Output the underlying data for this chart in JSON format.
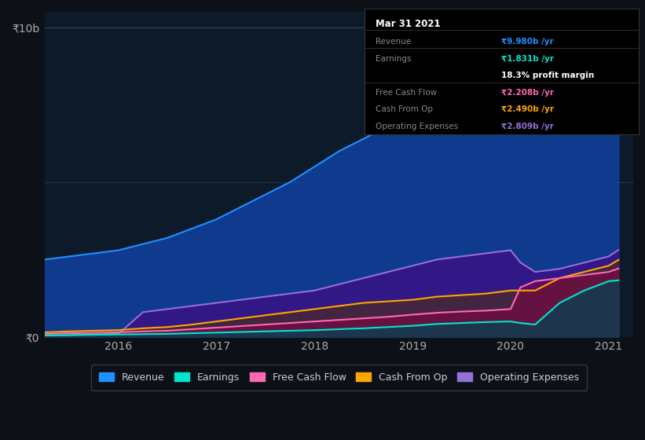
{
  "bg_color": "#0d1117",
  "chart_bg": "#0d1a2a",
  "title": "Mar 31 2021",
  "y_label_10b": "₹10b",
  "y_label_0": "₹0",
  "x_ticks": [
    "2016",
    "2017",
    "2018",
    "2019",
    "2020",
    "2021"
  ],
  "ylim": [
    0,
    10.5
  ],
  "tooltip": {
    "title": "Mar 31 2021",
    "rows": [
      {
        "label": "Revenue",
        "value": "₹9.980b /yr",
        "color": "#00bfff"
      },
      {
        "label": "Earnings",
        "value": "₹1.831b /yr",
        "color": "#00ffcc"
      },
      {
        "label": "profit_margin",
        "value": "18.3% profit margin",
        "color": "#ffffff"
      },
      {
        "label": "Free Cash Flow",
        "value": "₹2.208b /yr",
        "color": "#ff69b4"
      },
      {
        "label": "Cash From Op",
        "value": "₹2.490b /yr",
        "color": "#ffa500"
      },
      {
        "label": "Operating Expenses",
        "value": "₹2.809b /yr",
        "color": "#9370db"
      }
    ]
  },
  "revenue": {
    "x": [
      2015.25,
      2015.5,
      2015.75,
      2016.0,
      2016.25,
      2016.5,
      2016.75,
      2017.0,
      2017.25,
      2017.5,
      2017.75,
      2018.0,
      2018.25,
      2018.5,
      2018.75,
      2019.0,
      2019.25,
      2019.5,
      2019.75,
      2020.0,
      2020.1,
      2020.25,
      2020.5,
      2020.75,
      2021.0,
      2021.1
    ],
    "y": [
      2.5,
      2.6,
      2.7,
      2.8,
      3.0,
      3.2,
      3.5,
      3.8,
      4.2,
      4.6,
      5.0,
      5.5,
      6.0,
      6.4,
      6.8,
      7.2,
      7.6,
      7.9,
      8.1,
      8.3,
      7.8,
      7.3,
      7.8,
      8.5,
      9.5,
      10.0
    ],
    "color": "#1e90ff",
    "fill_color": "#1040a0",
    "alpha": 0.85
  },
  "earnings": {
    "x": [
      2015.25,
      2015.5,
      2015.75,
      2016.0,
      2016.25,
      2016.5,
      2016.75,
      2017.0,
      2017.25,
      2017.5,
      2017.75,
      2018.0,
      2018.25,
      2018.5,
      2018.75,
      2019.0,
      2019.25,
      2019.5,
      2019.75,
      2020.0,
      2020.1,
      2020.25,
      2020.5,
      2020.75,
      2021.0,
      2021.1
    ],
    "y": [
      0.05,
      0.06,
      0.07,
      0.08,
      0.09,
      0.1,
      0.12,
      0.14,
      0.16,
      0.18,
      0.2,
      0.22,
      0.25,
      0.28,
      0.32,
      0.36,
      0.42,
      0.45,
      0.48,
      0.5,
      0.45,
      0.4,
      1.1,
      1.5,
      1.8,
      1.83
    ],
    "color": "#00e5cc",
    "fill_color": "#004455",
    "alpha": 0.7
  },
  "free_cash_flow": {
    "x": [
      2015.25,
      2015.5,
      2015.75,
      2016.0,
      2016.25,
      2016.5,
      2016.75,
      2017.0,
      2017.25,
      2017.5,
      2017.75,
      2018.0,
      2018.25,
      2018.5,
      2018.75,
      2019.0,
      2019.25,
      2019.5,
      2019.75,
      2020.0,
      2020.1,
      2020.25,
      2020.5,
      2020.75,
      2021.0,
      2021.1
    ],
    "y": [
      0.1,
      0.12,
      0.13,
      0.15,
      0.18,
      0.2,
      0.25,
      0.3,
      0.35,
      0.4,
      0.45,
      0.5,
      0.55,
      0.6,
      0.65,
      0.72,
      0.78,
      0.82,
      0.85,
      0.9,
      1.6,
      1.8,
      1.9,
      2.0,
      2.1,
      2.208
    ],
    "color": "#ff69b4",
    "fill_color": "#880040",
    "alpha": 0.5
  },
  "cash_from_op": {
    "x": [
      2015.25,
      2015.5,
      2015.75,
      2016.0,
      2016.25,
      2016.5,
      2016.75,
      2017.0,
      2017.25,
      2017.5,
      2017.75,
      2018.0,
      2018.25,
      2018.5,
      2018.75,
      2019.0,
      2019.25,
      2019.5,
      2019.75,
      2020.0,
      2020.1,
      2020.25,
      2020.5,
      2020.75,
      2021.0,
      2021.1
    ],
    "y": [
      0.15,
      0.18,
      0.2,
      0.22,
      0.28,
      0.32,
      0.4,
      0.5,
      0.6,
      0.7,
      0.8,
      0.9,
      1.0,
      1.1,
      1.15,
      1.2,
      1.3,
      1.35,
      1.4,
      1.5,
      1.5,
      1.5,
      1.9,
      2.1,
      2.3,
      2.49
    ],
    "color": "#ffa500",
    "fill_color": "#553300",
    "alpha": 0.5
  },
  "operating_expenses": {
    "x": [
      2015.25,
      2015.5,
      2015.75,
      2016.0,
      2016.25,
      2016.5,
      2016.75,
      2017.0,
      2017.25,
      2017.5,
      2017.75,
      2018.0,
      2018.25,
      2018.5,
      2018.75,
      2019.0,
      2019.25,
      2019.5,
      2019.75,
      2020.0,
      2020.1,
      2020.25,
      2020.5,
      2020.75,
      2021.0,
      2021.1
    ],
    "y": [
      0.05,
      0.06,
      0.08,
      0.1,
      0.8,
      0.9,
      1.0,
      1.1,
      1.2,
      1.3,
      1.4,
      1.5,
      1.7,
      1.9,
      2.1,
      2.3,
      2.5,
      2.6,
      2.7,
      2.8,
      2.4,
      2.1,
      2.2,
      2.4,
      2.6,
      2.809
    ],
    "color": "#9370db",
    "fill_color": "#4b0082",
    "alpha": 0.6
  },
  "legend": [
    {
      "label": "Revenue",
      "color": "#1e90ff"
    },
    {
      "label": "Earnings",
      "color": "#00e5cc"
    },
    {
      "label": "Free Cash Flow",
      "color": "#ff69b4"
    },
    {
      "label": "Cash From Op",
      "color": "#ffa500"
    },
    {
      "label": "Operating Expenses",
      "color": "#9370db"
    }
  ]
}
